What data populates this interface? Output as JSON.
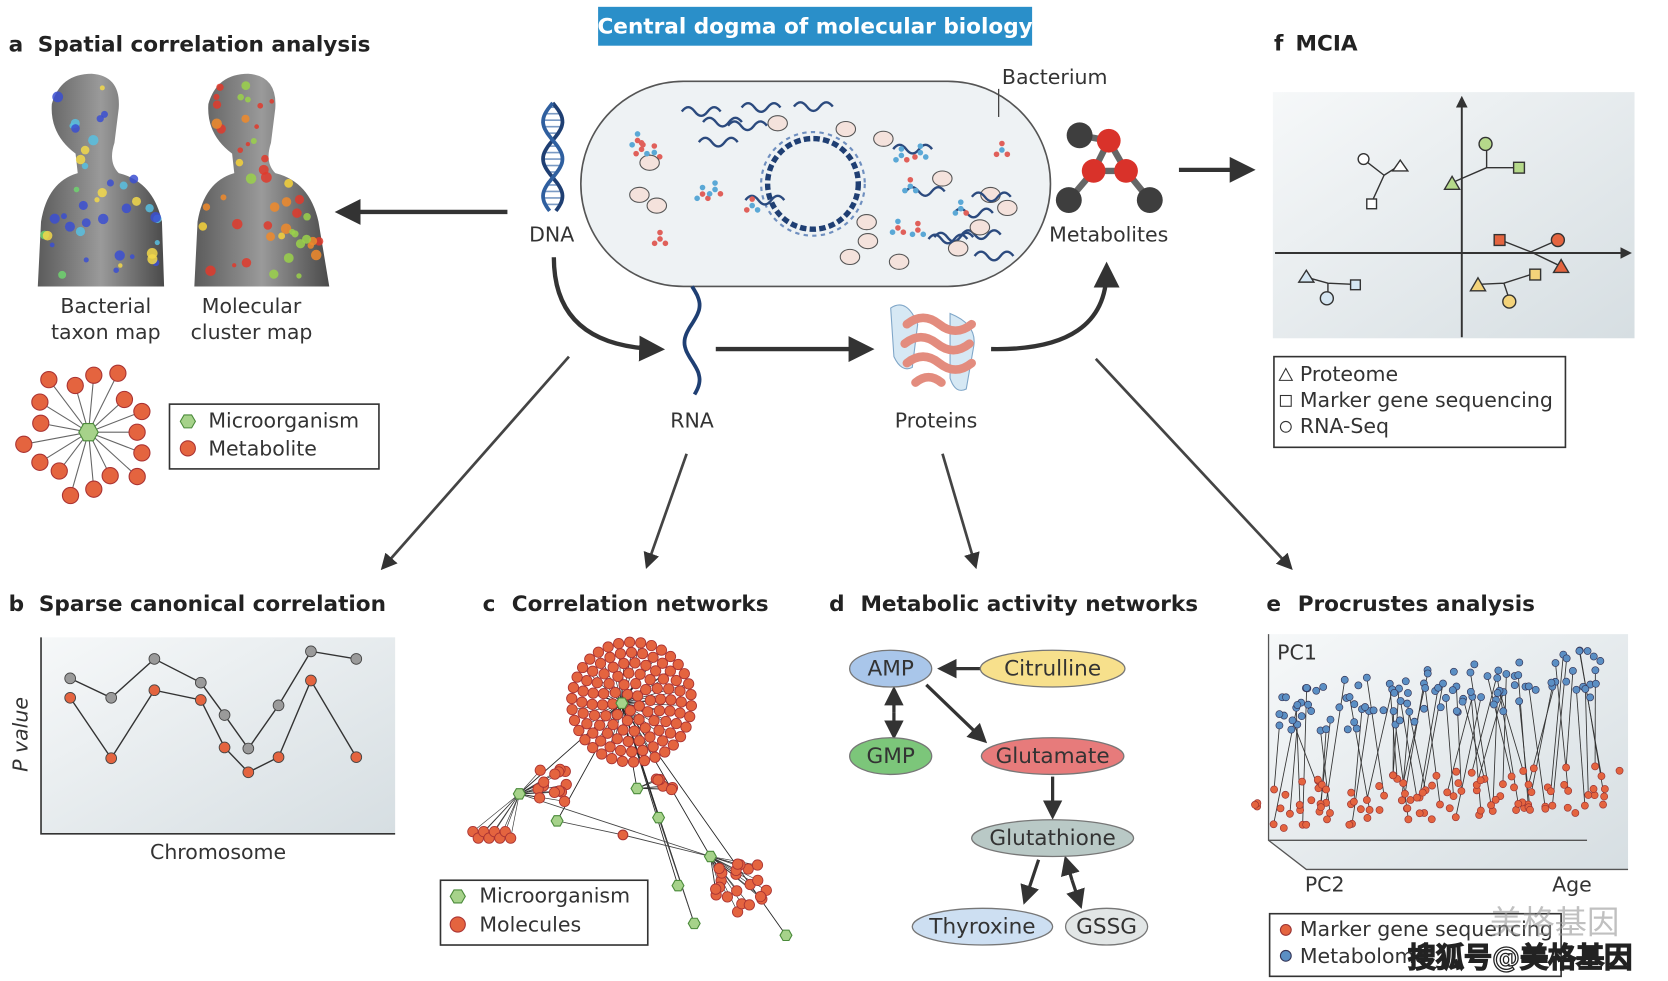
{
  "header": {
    "title": "Central dogma of molecular biology"
  },
  "center": {
    "bacterium": "Bacterium",
    "dna": "DNA",
    "rna": "RNA",
    "proteins": "Proteins",
    "metabolites": "Metabolites"
  },
  "panels": {
    "a": {
      "letter": "a",
      "title": "Spatial correlation analysis",
      "maps": [
        [
          "Bacterial",
          "taxon map"
        ],
        [
          "Molecular",
          "cluster map"
        ]
      ],
      "legend": [
        "Microorganism",
        "Metabolite"
      ]
    },
    "b": {
      "letter": "b",
      "title": "Sparse canonical correlation",
      "y_label": "P value",
      "x_label": "Chromosome"
    },
    "c": {
      "letter": "c",
      "title": "Correlation networks",
      "legend": [
        "Microorganism",
        "Molecules"
      ]
    },
    "d": {
      "letter": "d",
      "title": "Metabolic activity networks",
      "nodes": [
        "AMP",
        "Citrulline",
        "GMP",
        "Glutamate",
        "Glutathione",
        "Thyroxine",
        "GSSG"
      ]
    },
    "e": {
      "letter": "e",
      "title": "Procrustes analysis",
      "axis_labels": [
        "PC1",
        "PC2",
        "Age"
      ],
      "legend": [
        "Marker gene sequencing",
        "Metabolome"
      ]
    },
    "f": {
      "letter": "f",
      "title": "MCIA",
      "legend": [
        "Proteome",
        "Marker gene sequencing",
        "RNA-Seq"
      ]
    }
  },
  "watermark": {
    "logo": "美格基因",
    "caption": "搜狐号@美格基因"
  }
}
